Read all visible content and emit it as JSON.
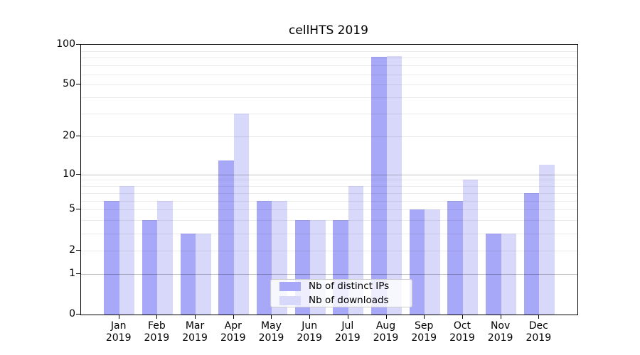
{
  "title": "cellHTS 2019",
  "chart_data": {
    "type": "bar",
    "title": "cellHTS 2019",
    "categories": [
      "Jan\n2019",
      "Feb\n2019",
      "Mar\n2019",
      "Apr\n2019",
      "May\n2019",
      "Jun\n2019",
      "Jul\n2019",
      "Aug\n2019",
      "Sep\n2019",
      "Oct\n2019",
      "Nov\n2019",
      "Dec\n2019"
    ],
    "series": [
      {
        "name": "Nb of distinct IPs",
        "color": "#a8a8f8",
        "values": [
          6,
          4,
          3,
          13,
          6,
          4,
          4,
          81,
          5,
          6,
          3,
          7
        ]
      },
      {
        "name": "Nb of downloads",
        "color": "#d8d8fa",
        "values": [
          8,
          6,
          3,
          30,
          6,
          4,
          8,
          82,
          5,
          9,
          3,
          12
        ]
      }
    ],
    "yscale": "log10(1+x)",
    "ylim": [
      0,
      100
    ],
    "yticks": [
      0,
      1,
      2,
      5,
      10,
      20,
      50,
      100
    ],
    "gridlines": {
      "major": [
        1,
        10
      ],
      "minor": [
        2,
        3,
        4,
        5,
        6,
        7,
        8,
        9,
        20,
        30,
        40,
        50,
        60,
        70,
        80,
        90
      ]
    },
    "grid_major_color": "rgba(0,0,0,0.24)",
    "grid_minor_color": "rgba(0,0,0,0.08)",
    "axis_color": "#000000",
    "legend_position": "lower-center"
  }
}
